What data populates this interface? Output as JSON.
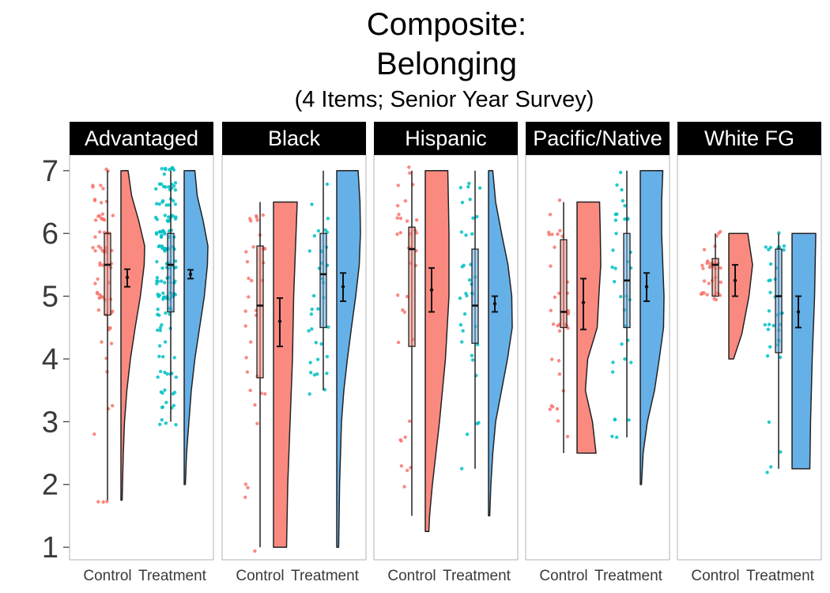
{
  "chart_data": {
    "type": "raincloud",
    "title": [
      "Composite:",
      "Belonging"
    ],
    "subtitle": "(4 Items; Senior Year Survey)",
    "ylim": [
      0.8,
      7.25
    ],
    "yticks": [
      1,
      2,
      3,
      4,
      5,
      6,
      7
    ],
    "groups": [
      "Control",
      "Treatment"
    ],
    "colors": {
      "Control": "#f8766d",
      "Treatment": "#00bfc4",
      "ControlFill": "#fa8a80",
      "TreatmentFill": "#66b0e8"
    },
    "grid": false,
    "legend": "none",
    "panels": [
      {
        "label": "Advantaged",
        "Control": {
          "min": 1.75,
          "q1": 4.7,
          "median": 5.5,
          "q3": 6.0,
          "max": 7.0,
          "mean": 5.3,
          "ci": [
            5.15,
            5.43
          ],
          "density": [
            [
              1.75,
              0.05
            ],
            [
              2.5,
              0.1
            ],
            [
              3,
              0.15
            ],
            [
              3.5,
              0.25
            ],
            [
              4,
              0.4
            ],
            [
              4.5,
              0.6
            ],
            [
              5,
              0.82
            ],
            [
              5.5,
              0.98
            ],
            [
              5.8,
              1.0
            ],
            [
              6.2,
              0.75
            ],
            [
              6.6,
              0.45
            ],
            [
              7,
              0.3
            ]
          ]
        },
        "Treatment": {
          "min": 3.0,
          "q1": 4.75,
          "median": 5.5,
          "q3": 6.0,
          "max": 7.0,
          "mean": 5.35,
          "ci": [
            5.28,
            5.42
          ],
          "density": [
            [
              2.0,
              0.05
            ],
            [
              2.5,
              0.1
            ],
            [
              3,
              0.2
            ],
            [
              3.5,
              0.3
            ],
            [
              4,
              0.45
            ],
            [
              4.5,
              0.65
            ],
            [
              5,
              0.85
            ],
            [
              5.5,
              0.98
            ],
            [
              5.8,
              1.0
            ],
            [
              6.2,
              0.8
            ],
            [
              6.6,
              0.55
            ],
            [
              7,
              0.45
            ]
          ]
        }
      },
      {
        "label": "Black",
        "Control": {
          "min": 1.0,
          "q1": 3.7,
          "median": 4.85,
          "q3": 5.8,
          "max": 6.5,
          "mean": 4.6,
          "ci": [
            4.2,
            4.97
          ],
          "density": [
            [
              1,
              0.55
            ],
            [
              2,
              0.6
            ],
            [
              3,
              0.7
            ],
            [
              4,
              0.8
            ],
            [
              5,
              0.85
            ],
            [
              6,
              0.95
            ],
            [
              6.5,
              1.0
            ]
          ]
        },
        "Treatment": {
          "min": 3.5,
          "q1": 4.5,
          "median": 5.35,
          "q3": 6.0,
          "max": 7.0,
          "mean": 5.15,
          "ci": [
            4.92,
            5.37
          ],
          "density": [
            [
              1,
              0.08
            ],
            [
              2,
              0.12
            ],
            [
              3,
              0.2
            ],
            [
              3.5,
              0.3
            ],
            [
              4,
              0.45
            ],
            [
              4.5,
              0.62
            ],
            [
              5,
              0.8
            ],
            [
              5.5,
              0.95
            ],
            [
              6,
              1.0
            ],
            [
              6.5,
              0.98
            ],
            [
              7,
              0.9
            ]
          ]
        }
      },
      {
        "label": "Hispanic",
        "Control": {
          "min": 1.5,
          "q1": 4.2,
          "median": 5.75,
          "q3": 6.1,
          "max": 7.0,
          "mean": 5.1,
          "ci": [
            4.75,
            5.45
          ],
          "density": [
            [
              1.25,
              0.15
            ],
            [
              1.5,
              0.18
            ],
            [
              2,
              0.3
            ],
            [
              3,
              0.6
            ],
            [
              4,
              0.85
            ],
            [
              5,
              1.0
            ],
            [
              6,
              1.0
            ],
            [
              7,
              0.95
            ]
          ]
        },
        "Treatment": {
          "min": 2.25,
          "q1": 4.25,
          "median": 4.85,
          "q3": 5.75,
          "max": 7.0,
          "mean": 4.88,
          "ci": [
            4.75,
            5.0
          ],
          "density": [
            [
              1.5,
              0.05
            ],
            [
              2,
              0.1
            ],
            [
              2.5,
              0.18
            ],
            [
              3,
              0.3
            ],
            [
              3.5,
              0.55
            ],
            [
              4,
              0.8
            ],
            [
              4.5,
              1.0
            ],
            [
              5,
              0.98
            ],
            [
              5.5,
              0.82
            ],
            [
              6,
              0.55
            ],
            [
              6.5,
              0.3
            ],
            [
              7,
              0.18
            ]
          ]
        }
      },
      {
        "label": "Pacific/Native",
        "Control": {
          "min": 2.5,
          "q1": 4.5,
          "median": 4.75,
          "q3": 5.9,
          "max": 6.5,
          "mean": 4.9,
          "ci": [
            4.47,
            5.28
          ],
          "density": [
            [
              2.5,
              0.8
            ],
            [
              3,
              0.65
            ],
            [
              3.5,
              0.35
            ],
            [
              4,
              0.45
            ],
            [
              4.5,
              0.85
            ],
            [
              5,
              0.92
            ],
            [
              5.5,
              1.0
            ],
            [
              6,
              0.98
            ],
            [
              6.5,
              0.95
            ]
          ]
        },
        "Treatment": {
          "min": 2.75,
          "q1": 4.5,
          "median": 5.25,
          "q3": 6.0,
          "max": 7.0,
          "mean": 5.15,
          "ci": [
            4.92,
            5.37
          ],
          "density": [
            [
              2,
              0.05
            ],
            [
              2.5,
              0.12
            ],
            [
              3,
              0.3
            ],
            [
              3.5,
              0.6
            ],
            [
              4,
              0.8
            ],
            [
              4.5,
              0.98
            ],
            [
              5,
              1.0
            ],
            [
              5.5,
              0.95
            ],
            [
              6,
              0.9
            ],
            [
              6.5,
              0.9
            ],
            [
              7,
              0.95
            ]
          ]
        }
      },
      {
        "label": "White FG",
        "Control": {
          "min": 5.0,
          "q1": 5.0,
          "median": 5.5,
          "q3": 5.6,
          "max": 6.0,
          "mean": 5.25,
          "ci": [
            5.0,
            5.5
          ],
          "density": [
            [
              4,
              0.2
            ],
            [
              4.4,
              0.55
            ],
            [
              5,
              0.85
            ],
            [
              5.5,
              1.0
            ],
            [
              6,
              0.8
            ]
          ]
        },
        "Treatment": {
          "min": 2.25,
          "q1": 4.1,
          "median": 5.0,
          "q3": 5.75,
          "max": 6.0,
          "mean": 4.75,
          "ci": [
            4.5,
            5.0
          ],
          "density": [
            [
              2.25,
              0.75
            ],
            [
              3,
              0.78
            ],
            [
              4,
              0.85
            ],
            [
              5,
              0.95
            ],
            [
              6,
              1.0
            ]
          ]
        }
      }
    ]
  }
}
